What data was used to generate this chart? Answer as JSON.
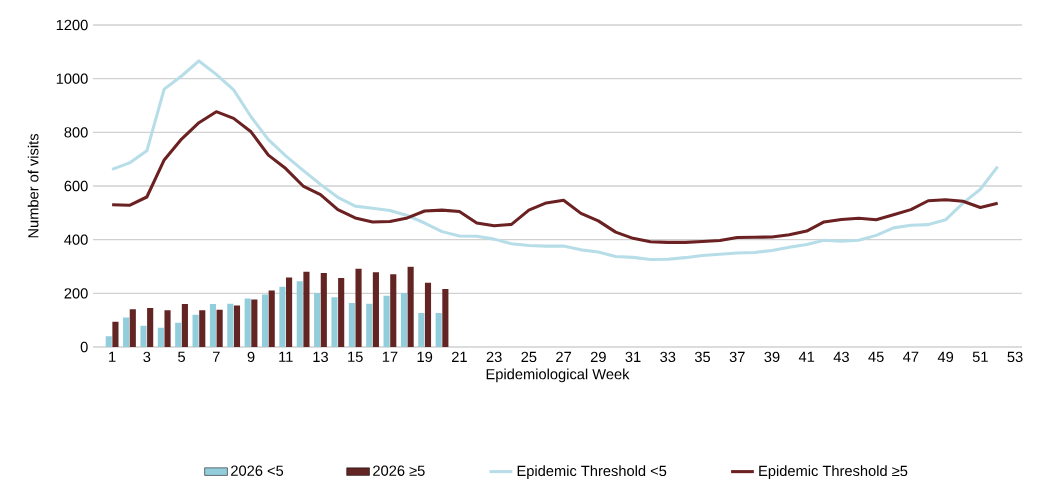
{
  "chart_data": {
    "type": "bar",
    "xlabel": "Epidemiological Week",
    "ylabel": "Number of visits",
    "categories": [
      "1",
      null,
      "3",
      null,
      "5",
      null,
      "7",
      null,
      "9",
      null,
      "11",
      null,
      "13",
      null,
      "15",
      null,
      "17",
      null,
      "19",
      null,
      "21",
      null,
      "23",
      null,
      "25",
      null,
      "27",
      null,
      "29",
      null,
      "31",
      null,
      "33",
      null,
      "35",
      null,
      "37",
      null,
      "39",
      null,
      "41",
      null,
      "43",
      null,
      "45",
      null,
      "47",
      null,
      "49",
      null,
      "51",
      null,
      "53"
    ],
    "series": [
      {
        "name": "2026 <5",
        "color": "#92cddc",
        "values": [
          40,
          110,
          79,
          72,
          90,
          120,
          160,
          161,
          181,
          196,
          225,
          245,
          201,
          185,
          164,
          161,
          191,
          201,
          127,
          127,
          null,
          null,
          null,
          null,
          null,
          null,
          null,
          null,
          null,
          null,
          null,
          null,
          null,
          null,
          null,
          null,
          null,
          null,
          null,
          null,
          null,
          null,
          null,
          null,
          null,
          null,
          null,
          null,
          null,
          null,
          null,
          null,
          null
        ]
      },
      {
        "name": "2026  ≥5",
        "color": "#632523",
        "values": [
          94,
          141,
          145,
          137,
          160,
          137,
          139,
          155,
          177,
          211,
          259,
          280,
          276,
          257,
          292,
          279,
          271,
          299,
          239,
          216,
          null,
          null,
          null,
          null,
          null,
          null,
          null,
          null,
          null,
          null,
          null,
          null,
          null,
          null,
          null,
          null,
          null,
          null,
          null,
          null,
          null,
          null,
          null,
          null,
          null,
          null,
          null,
          null,
          null,
          null,
          null,
          null,
          null
        ]
      },
      {
        "name": "Epidemic Threshold <5",
        "type": "line",
        "color": "#b7dee8",
        "values": [
          662,
          686,
          731,
          961,
          1010,
          1066,
          1016,
          958,
          858,
          773,
          712,
          658,
          606,
          558,
          525,
          517,
          509,
          490,
          462,
          430,
          414,
          413,
          402,
          385,
          378,
          376,
          376,
          362,
          354,
          337,
          334,
          326,
          327,
          333,
          341,
          346,
          350,
          352,
          360,
          372,
          382,
          398,
          394,
          398,
          416,
          444,
          454,
          456,
          474,
          536,
          588,
          672,
          null
        ]
      },
      {
        "name": "Epidemic Threshold ≥5",
        "type": "line",
        "color": "#6b2121",
        "values": [
          530,
          528,
          559,
          697,
          775,
          836,
          877,
          852,
          802,
          715,
          665,
          600,
          568,
          512,
          481,
          466,
          468,
          481,
          507,
          510,
          505,
          462,
          452,
          457,
          510,
          537,
          547,
          498,
          470,
          428,
          405,
          392,
          390,
          390,
          393,
          397,
          408,
          409,
          410,
          418,
          432,
          466,
          475,
          480,
          474,
          493,
          512,
          545,
          549,
          543,
          520,
          536,
          null
        ]
      }
    ],
    "ylim": [
      0,
      1200
    ],
    "yticks": [
      0,
      200,
      400,
      600,
      800,
      1000,
      1200
    ],
    "grid": "y",
    "legend": "bottom"
  }
}
